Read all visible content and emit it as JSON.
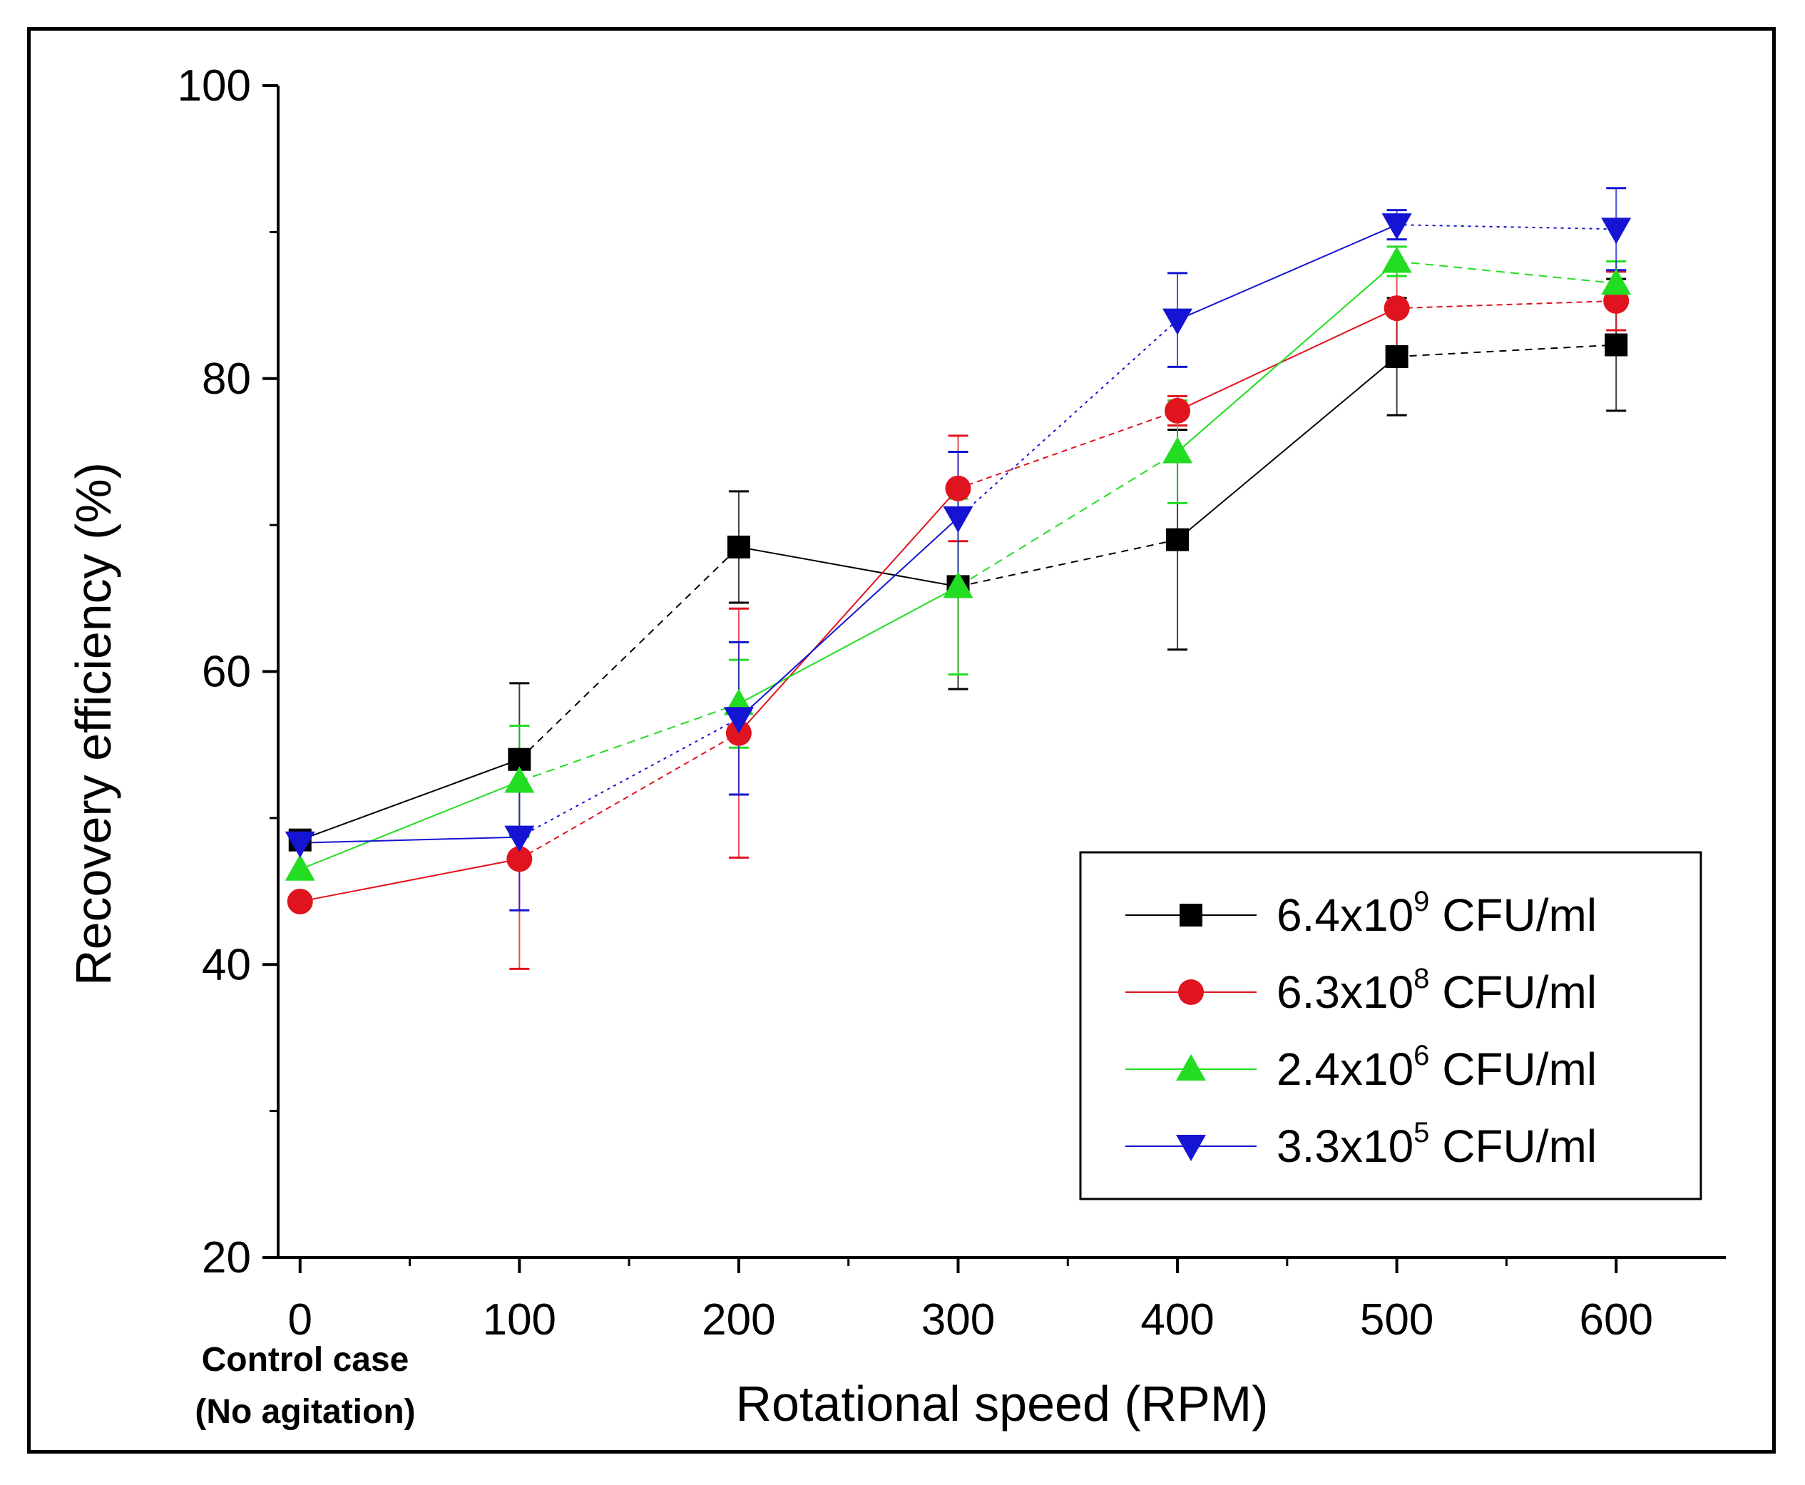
{
  "chart_data": {
    "type": "line",
    "xlabel": "Rotational speed (RPM)",
    "ylabel": "Recovery efficiency (%)",
    "x": [
      0,
      100,
      200,
      300,
      400,
      500,
      600
    ],
    "xticks": [
      "0",
      "100",
      "200",
      "300",
      "400",
      "500",
      "600"
    ],
    "yticks": [
      "20",
      "40",
      "60",
      "80",
      "100"
    ],
    "xlim": [
      -10,
      650
    ],
    "ylim": [
      20,
      100
    ],
    "x_note": [
      "Control case",
      "(No agitation)"
    ],
    "legend_position": "bottom-right",
    "series": [
      {
        "name": "6.4x10^9 CFU/ml",
        "label_base": "6.4x10",
        "label_exp": "9",
        "label_unit": " CFU/ml",
        "marker": "square",
        "color": "#000000",
        "values": [
          48.5,
          54.0,
          68.5,
          65.8,
          69.0,
          81.5,
          82.3
        ],
        "errors": [
          0,
          5.2,
          3.8,
          7.0,
          7.5,
          4.0,
          4.5
        ]
      },
      {
        "name": "6.3x10^8 CFU/ml",
        "label_base": "6.3x10",
        "label_exp": "8",
        "label_unit": " CFU/ml",
        "marker": "circle",
        "color": "#e0141e",
        "values": [
          44.3,
          47.2,
          55.8,
          72.5,
          77.8,
          84.8,
          85.3
        ],
        "errors": [
          0,
          7.5,
          8.5,
          3.6,
          1.0,
          3.0,
          2.0
        ]
      },
      {
        "name": "2.4x10^6 CFU/ml",
        "label_base": "2.4x10",
        "label_exp": "6",
        "label_unit": " CFU/ml",
        "marker": "triangle-up",
        "color": "#22dd22",
        "values": [
          46.5,
          52.5,
          57.8,
          65.8,
          75.0,
          88.0,
          86.5
        ],
        "errors": [
          0,
          3.8,
          3.0,
          6.0,
          3.5,
          1.0,
          1.5
        ]
      },
      {
        "name": "3.3x10^5 CFU/ml",
        "label_base": "3.3x10",
        "label_exp": "5",
        "label_unit": " CFU/ml",
        "marker": "triangle-down",
        "color": "#1414d2",
        "values": [
          48.3,
          48.7,
          56.8,
          70.5,
          84.0,
          90.5,
          90.2
        ],
        "errors": [
          0,
          5.0,
          5.2,
          4.5,
          3.2,
          1.0,
          2.8
        ]
      }
    ]
  }
}
